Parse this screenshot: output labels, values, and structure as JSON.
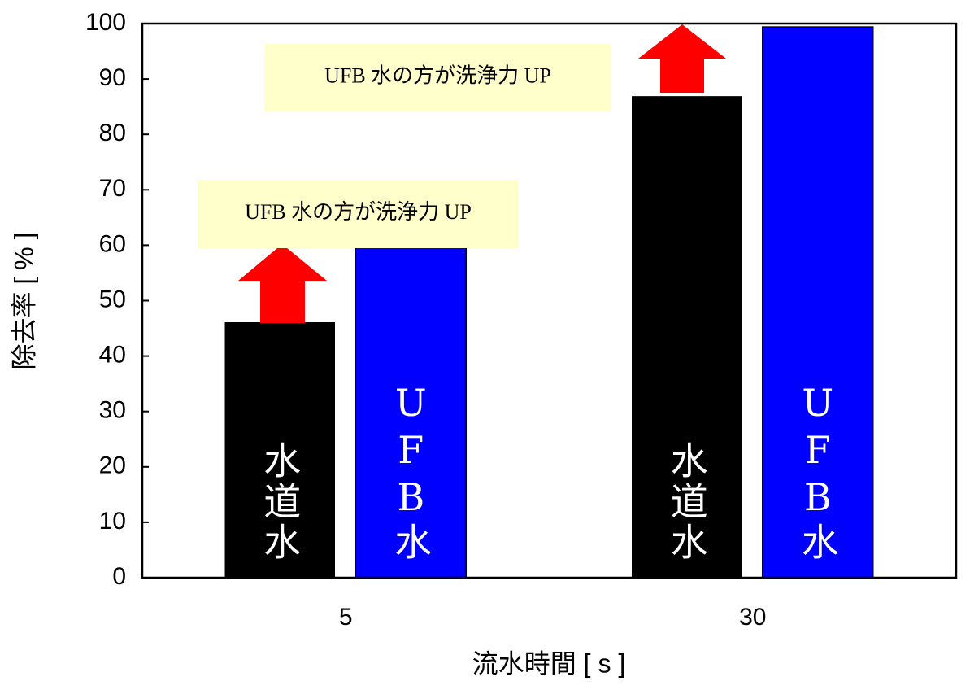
{
  "chart_data": {
    "type": "bar",
    "x_label": "流水時間 [ s ]",
    "y_label": "除去率 [ % ]",
    "categories": [
      "5",
      "30"
    ],
    "series": [
      {
        "name": "水道水",
        "color": "#000000",
        "values": [
          46,
          86.8
        ]
      },
      {
        "name": "UFB水",
        "color": "#0000ff",
        "values": [
          60,
          99.4
        ]
      }
    ],
    "ylim": [
      0,
      100
    ],
    "yticks": [
      0,
      10,
      20,
      30,
      40,
      50,
      60,
      70,
      80,
      90,
      100
    ],
    "annotations": [
      {
        "text": "UFB 水の方が洗浄力 UP"
      },
      {
        "text": "UFB 水の方が洗浄力 UP"
      }
    ]
  }
}
